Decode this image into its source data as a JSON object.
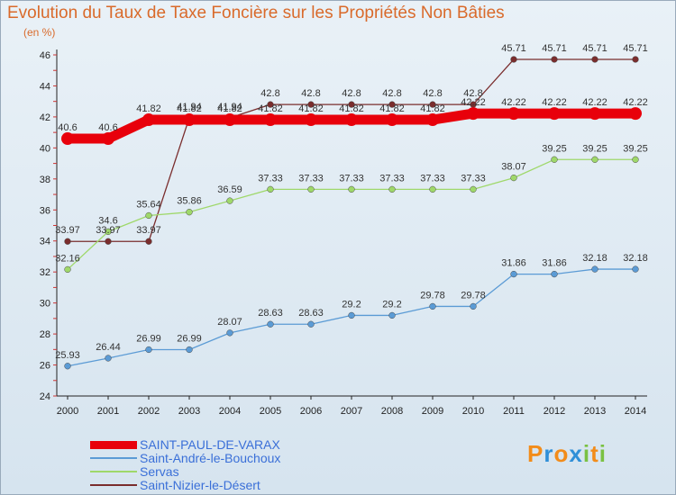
{
  "chart_data": {
    "type": "line",
    "title": "Evolution du Taux de Taxe Foncière sur les Propriétés Non Bâties",
    "ylabel": "(en %)",
    "xlabel": "",
    "ylim": [
      24,
      46
    ],
    "yticks": [
      "24",
      "26",
      "28",
      "30",
      "32",
      "34",
      "36",
      "38",
      "40",
      "42",
      "44",
      "46"
    ],
    "categories": [
      "2000",
      "2001",
      "2002",
      "2003",
      "2004",
      "2005",
      "2006",
      "2007",
      "2008",
      "2009",
      "2010",
      "2011",
      "2012",
      "2013",
      "2014"
    ],
    "series": [
      {
        "name": "SAINT-PAUL-DE-VARAX",
        "color": "#e8000b",
        "values": [
          40.6,
          40.6,
          41.82,
          41.82,
          41.82,
          41.82,
          41.82,
          41.82,
          41.82,
          41.82,
          42.22,
          42.22,
          42.22,
          42.22,
          42.22
        ],
        "labels": [
          "40.6",
          "40.6",
          "41.82",
          "41.82",
          "41.82",
          "41.82",
          "41.82",
          "41.82",
          "41.82",
          "41.82",
          "42.22",
          "42.22",
          "42.22",
          "42.22",
          "42.22"
        ]
      },
      {
        "name": "Saint-André-le-Bouchoux",
        "color": "#5b9bd5",
        "values": [
          25.93,
          26.44,
          26.99,
          26.99,
          28.07,
          28.63,
          28.63,
          29.2,
          29.2,
          29.78,
          29.78,
          31.86,
          31.86,
          32.18,
          32.18
        ],
        "labels": [
          "25.93",
          "26.44",
          "26.99",
          "26.99",
          "28.07",
          "28.63",
          "28.63",
          "29.2",
          "29.2",
          "29.78",
          "29.78",
          "31.86",
          "31.86",
          "32.18",
          "32.18"
        ]
      },
      {
        "name": "Servas",
        "color": "#9fd86a",
        "values": [
          32.16,
          34.6,
          35.64,
          35.86,
          36.59,
          37.33,
          37.33,
          37.33,
          37.33,
          37.33,
          37.33,
          38.07,
          39.25,
          39.25,
          39.25
        ],
        "labels": [
          "32.16",
          "34.6",
          "35.64",
          "35.86",
          "36.59",
          "37.33",
          "37.33",
          "37.33",
          "37.33",
          "37.33",
          "37.33",
          "38.07",
          "39.25",
          "39.25",
          "39.25"
        ]
      },
      {
        "name": "Saint-Nizier-le-Désert",
        "color": "#7a2d2d",
        "values": [
          33.97,
          33.97,
          33.97,
          41.94,
          41.94,
          42.8,
          42.8,
          42.8,
          42.8,
          42.8,
          42.8,
          45.71,
          45.71,
          45.71,
          45.71
        ],
        "labels": [
          "33.97",
          "33.97",
          "33.97",
          "41.94",
          "41.94",
          "42.8",
          "42.8",
          "42.8",
          "42.8",
          "42.8",
          "42.8",
          "45.71",
          "45.71",
          "45.71",
          "45.71"
        ]
      }
    ],
    "grid": false,
    "legend_position": "bottom-left"
  },
  "logo": {
    "text": "Proxiti",
    "colors": [
      "#f28c1a",
      "#2f8fd8",
      "#f28c1a",
      "#2f8fd8",
      "#7ac142",
      "#f28c1a",
      "#7ac142"
    ]
  }
}
